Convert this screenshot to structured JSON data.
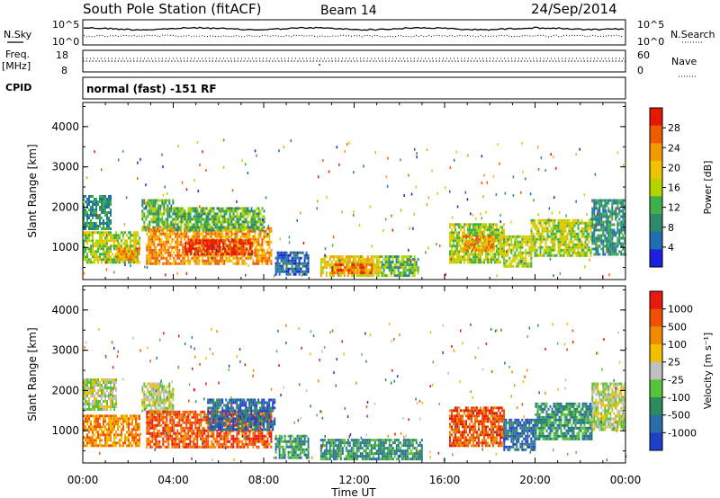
{
  "header": {
    "station": "South Pole Station (fitACF)",
    "beam": "Beam 14",
    "date": "24/Sep/2014"
  },
  "status_panels": {
    "nsky": {
      "label": "N.Sky",
      "ticks": [
        "10^5",
        "10^0"
      ]
    },
    "nsearch": {
      "label": "N.Search",
      "ticks": [
        "10^5",
        "10^0"
      ]
    },
    "freq": {
      "label_line1": "Freq.",
      "label_line2": "[MHz]",
      "ticks": [
        "18",
        "8"
      ]
    },
    "nave": {
      "label": "Nave",
      "ticks": [
        "60",
        "0"
      ]
    },
    "cpid": {
      "label": "CPID",
      "value": "normal (fast) -151 RF"
    }
  },
  "chart_data": [
    {
      "type": "heatmap",
      "quantity": "Power",
      "ylabel": "Slant Range [km]",
      "xlabel": "Time UT",
      "ylim": [
        200,
        4600
      ],
      "yticks": [
        "1000",
        "2000",
        "3000",
        "4000"
      ],
      "xticks": [
        "00:00",
        "04:00",
        "08:00",
        "12:00",
        "16:00",
        "20:00",
        "00:00"
      ],
      "colorbar": {
        "label": "Power [dB]",
        "ticks": [
          "4",
          "8",
          "12",
          "16",
          "20",
          "24",
          "28"
        ],
        "colors": [
          "#1f1fe0",
          "#1f6fb0",
          "#2e8a6a",
          "#3fb04a",
          "#b4d400",
          "#f0c400",
          "#f49a00",
          "#f05a00",
          "#e81800"
        ]
      },
      "regions": [
        {
          "t0": 0.0,
          "t1": 1.2,
          "r0": 1450,
          "r1": 2300,
          "level": 2
        },
        {
          "t0": 0.0,
          "t1": 2.5,
          "r0": 600,
          "r1": 1400,
          "level": 4
        },
        {
          "t0": 1.5,
          "t1": 2.5,
          "r0": 700,
          "r1": 1000,
          "level": 6
        },
        {
          "t0": 2.6,
          "t1": 4.0,
          "r0": 1400,
          "r1": 2200,
          "level": 3
        },
        {
          "t0": 2.8,
          "t1": 8.3,
          "r0": 600,
          "r1": 1500,
          "level": 6
        },
        {
          "t0": 4.5,
          "t1": 7.5,
          "r0": 800,
          "r1": 1200,
          "level": 8
        },
        {
          "t0": 4.0,
          "t1": 8.0,
          "r0": 1400,
          "r1": 2000,
          "level": 3
        },
        {
          "t0": 8.5,
          "t1": 10.0,
          "r0": 350,
          "r1": 900,
          "level": 1
        },
        {
          "t0": 10.5,
          "t1": 13.2,
          "r0": 300,
          "r1": 800,
          "level": 5
        },
        {
          "t0": 11.0,
          "t1": 12.8,
          "r0": 350,
          "r1": 600,
          "level": 7
        },
        {
          "t0": 13.2,
          "t1": 14.8,
          "r0": 300,
          "r1": 800,
          "level": 3
        },
        {
          "t0": 16.2,
          "t1": 18.6,
          "r0": 600,
          "r1": 1600,
          "level": 4
        },
        {
          "t0": 16.8,
          "t1": 18.2,
          "r0": 900,
          "r1": 1300,
          "level": 6
        },
        {
          "t0": 18.6,
          "t1": 19.8,
          "r0": 500,
          "r1": 1300,
          "level": 4
        },
        {
          "t0": 19.8,
          "t1": 22.5,
          "r0": 800,
          "r1": 1700,
          "level": 4
        },
        {
          "t0": 22.5,
          "t1": 24.0,
          "r0": 800,
          "r1": 2200,
          "level": 2
        }
      ]
    },
    {
      "type": "heatmap",
      "quantity": "Velocity",
      "ylabel": "Slant Range [km]",
      "xlabel": "Time UT",
      "ylim": [
        200,
        4600
      ],
      "yticks": [
        "1000",
        "2000",
        "3000",
        "4000"
      ],
      "xticks": [
        "00:00",
        "04:00",
        "08:00",
        "12:00",
        "16:00",
        "20:00",
        "00:00"
      ],
      "colorbar": {
        "label": "Velocity [m s⁻¹]",
        "ticks": [
          "1000",
          "500",
          "100",
          "25",
          "-25",
          "-100",
          "-500",
          "-1000"
        ],
        "colors": [
          "#1f3fc8",
          "#2a6ea8",
          "#2e8a5a",
          "#59c23c",
          "#c0c0c0",
          "#f0c000",
          "#f08a00",
          "#f05000",
          "#e81a10"
        ]
      },
      "regions": [
        {
          "t0": 0.0,
          "t1": 1.5,
          "r0": 1500,
          "r1": 2300,
          "level": 4
        },
        {
          "t0": 0.0,
          "t1": 2.5,
          "r0": 600,
          "r1": 1400,
          "level": 6
        },
        {
          "t0": 2.6,
          "t1": 4.0,
          "r0": 1400,
          "r1": 2200,
          "level": 4
        },
        {
          "t0": 2.8,
          "t1": 8.3,
          "r0": 600,
          "r1": 1500,
          "level": 7
        },
        {
          "t0": 5.5,
          "t1": 8.5,
          "r0": 1000,
          "r1": 1800,
          "level": 1
        },
        {
          "t0": 8.5,
          "t1": 10.0,
          "r0": 350,
          "r1": 900,
          "level": 2
        },
        {
          "t0": 10.5,
          "t1": 15.0,
          "r0": 300,
          "r1": 800,
          "level": 2
        },
        {
          "t0": 16.2,
          "t1": 18.6,
          "r0": 600,
          "r1": 1600,
          "level": 7
        },
        {
          "t0": 18.6,
          "t1": 20.0,
          "r0": 500,
          "r1": 1300,
          "level": 1
        },
        {
          "t0": 20.0,
          "t1": 22.5,
          "r0": 800,
          "r1": 1700,
          "level": 2
        },
        {
          "t0": 22.5,
          "t1": 24.0,
          "r0": 1000,
          "r1": 2200,
          "level": 4
        }
      ]
    }
  ]
}
